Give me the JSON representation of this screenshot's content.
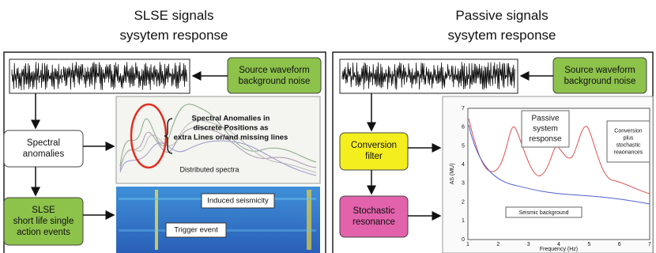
{
  "left": {
    "title": [
      "SLSE signals",
      "sysytem response"
    ],
    "source_box": [
      "Source waveform",
      "background noise"
    ],
    "spectral_box": [
      "Spectral",
      "anomalies"
    ],
    "slse_box": [
      "SLSE",
      "short life single",
      "action events"
    ],
    "spectra": {
      "annotation": [
        "Spectral Anomalies in",
        "discrete Positions as",
        "extra Lines or/and missing lines"
      ],
      "caption": "Distributed spectra"
    },
    "spectrogram": {
      "induced_label": "Induced seismicity",
      "trigger_label": "Trigger event"
    }
  },
  "right": {
    "title": [
      "Passive signals",
      "sysytem response"
    ],
    "source_box": [
      "Source waveform",
      "background noise"
    ],
    "conversion_box": [
      "Conversion",
      "filter"
    ],
    "stochastic_box": [
      "Stochastic",
      "resonance"
    ],
    "plot": {
      "x_label": "Frequency (Hz)",
      "y_label": "AS (MU)",
      "xticks": [
        1,
        2,
        3,
        4,
        5,
        6,
        7
      ],
      "yticks": [
        0,
        1,
        2,
        3,
        4,
        5,
        6,
        7
      ],
      "passive_label": [
        "Passive",
        "system",
        "response"
      ],
      "conversion_label": [
        "Conversion",
        "plus",
        "stochastic",
        "reaonances"
      ],
      "background_label": "Seismic background"
    }
  }
}
